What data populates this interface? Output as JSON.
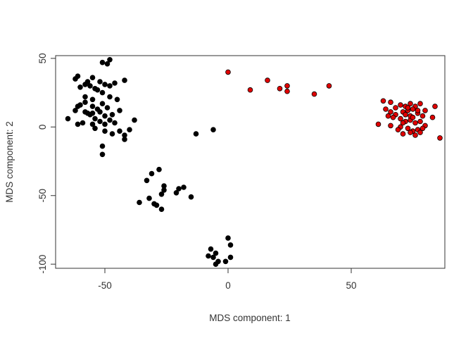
{
  "chart_data": {
    "type": "scatter",
    "xlabel": "MDS component: 1",
    "ylabel": "MDS component: 2",
    "xlim": [
      -70,
      88
    ],
    "ylim": [
      -103,
      52
    ],
    "x_ticks": [
      -50,
      0,
      50
    ],
    "y_ticks": [
      -100,
      -50,
      0,
      50
    ],
    "grid": false,
    "series": [
      {
        "color": "#000000",
        "points": [
          [
            -48,
            49
          ],
          [
            -51,
            47
          ],
          [
            -49,
            46
          ],
          [
            -61,
            37
          ],
          [
            -55,
            36
          ],
          [
            -62,
            35
          ],
          [
            -57,
            33
          ],
          [
            -58,
            31
          ],
          [
            -56,
            30
          ],
          [
            -60,
            29
          ],
          [
            -52,
            33
          ],
          [
            -50,
            31
          ],
          [
            -46,
            32
          ],
          [
            -48,
            30
          ],
          [
            -53,
            27
          ],
          [
            -54,
            28
          ],
          [
            -51,
            25
          ],
          [
            -42,
            34
          ],
          [
            -58,
            22
          ],
          [
            -55,
            20
          ],
          [
            -60,
            16
          ],
          [
            -61,
            15
          ],
          [
            -62,
            12
          ],
          [
            -58,
            11
          ],
          [
            -55,
            15
          ],
          [
            -51,
            17
          ],
          [
            -49,
            14
          ],
          [
            -56,
            9
          ],
          [
            -52,
            11
          ],
          [
            -50,
            8
          ],
          [
            -54,
            6
          ],
          [
            -47,
            9
          ],
          [
            -48,
            5
          ],
          [
            -44,
            12
          ],
          [
            -46,
            3
          ],
          [
            -52,
            4
          ],
          [
            -50,
            2
          ],
          [
            -55,
            2
          ],
          [
            -59,
            3
          ],
          [
            -61,
            2
          ],
          [
            -65,
            6
          ],
          [
            -38,
            5
          ],
          [
            -40,
            -2
          ],
          [
            -42,
            -6
          ],
          [
            -44,
            -3
          ],
          [
            -50,
            -3
          ],
          [
            -47,
            -5
          ],
          [
            -42,
            -9
          ],
          [
            -51,
            -14
          ],
          [
            -51,
            -20
          ],
          [
            -54,
            -1
          ],
          [
            -57,
            10
          ],
          [
            -48,
            22
          ],
          [
            -58,
            18
          ],
          [
            -53,
            13
          ],
          [
            -13,
            -5
          ],
          [
            -6,
            -2
          ],
          [
            -28,
            -31
          ],
          [
            -31,
            -34
          ],
          [
            -33,
            -39
          ],
          [
            -26,
            -43
          ],
          [
            -26,
            -46
          ],
          [
            -21,
            -48
          ],
          [
            -20,
            -45
          ],
          [
            -18,
            -44
          ],
          [
            -15,
            -51
          ],
          [
            -27,
            -49
          ],
          [
            -32,
            -52
          ],
          [
            -36,
            -55
          ],
          [
            -30,
            -56
          ],
          [
            -29,
            -57
          ],
          [
            -27,
            -60
          ],
          [
            0,
            -81
          ],
          [
            1,
            -86
          ],
          [
            -7,
            -89
          ],
          [
            -5,
            -92
          ],
          [
            -8,
            -94
          ],
          [
            -6,
            -95
          ],
          [
            1,
            -95
          ],
          [
            -4,
            -98
          ],
          [
            -5,
            -100
          ],
          [
            -1,
            -98
          ],
          [
            -55,
            10
          ],
          [
            -45,
            20
          ]
        ]
      },
      {
        "color": "#e00000",
        "points": [
          [
            0,
            40
          ],
          [
            9,
            27
          ],
          [
            16,
            34
          ],
          [
            21,
            28
          ],
          [
            24,
            30
          ],
          [
            24,
            26
          ],
          [
            35,
            24
          ],
          [
            41,
            30
          ],
          [
            63,
            19
          ],
          [
            66,
            18
          ],
          [
            70,
            16
          ],
          [
            72,
            15
          ],
          [
            74,
            17
          ],
          [
            76,
            15
          ],
          [
            78,
            17
          ],
          [
            80,
            12
          ],
          [
            84,
            15
          ],
          [
            64,
            13
          ],
          [
            66,
            11
          ],
          [
            68,
            9
          ],
          [
            71,
            11
          ],
          [
            73,
            12
          ],
          [
            75,
            13
          ],
          [
            77,
            10
          ],
          [
            79,
            8
          ],
          [
            83,
            7
          ],
          [
            65,
            8
          ],
          [
            67,
            7
          ],
          [
            70,
            6
          ],
          [
            72,
            4
          ],
          [
            74,
            5
          ],
          [
            76,
            3
          ],
          [
            78,
            4
          ],
          [
            80,
            1
          ],
          [
            61,
            2
          ],
          [
            66,
            1
          ],
          [
            70,
            0
          ],
          [
            73,
            -1
          ],
          [
            75,
            -3
          ],
          [
            77,
            -2
          ],
          [
            79,
            -1
          ],
          [
            71,
            -5
          ],
          [
            74,
            -4
          ],
          [
            76,
            -6
          ],
          [
            86,
            -8
          ],
          [
            68,
            14
          ],
          [
            72,
            9
          ],
          [
            74,
            8
          ],
          [
            77,
            12
          ],
          [
            75,
            7
          ],
          [
            73,
            14
          ],
          [
            71,
            3
          ],
          [
            69,
            -2
          ],
          [
            78,
            -4
          ]
        ]
      }
    ]
  }
}
